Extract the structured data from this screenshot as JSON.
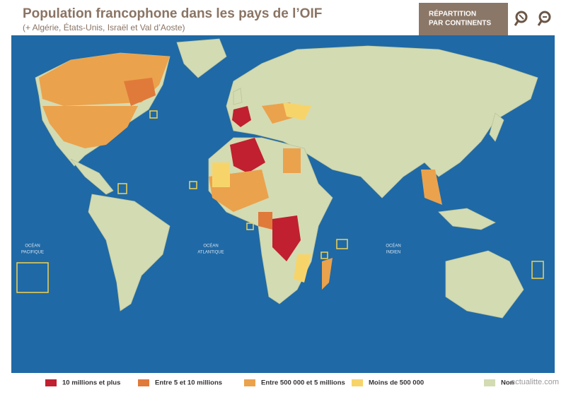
{
  "header": {
    "title": "Population francophone dans les pays de l’OIF",
    "subtitle": "(+ Algérie, États-Unis, Israël et Val d’Aoste)",
    "button": [
      "RÉPARTITION",
      "PAR CONTINENTS"
    ]
  },
  "map": {
    "oceans": [
      {
        "lines": [
          "OCÉAN",
          "PACIFIQUE"
        ]
      },
      {
        "lines": [
          "OCÉAN",
          "ATLANTIQUE"
        ]
      },
      {
        "lines": [
          "OCÉAN",
          "INDIEN"
        ]
      }
    ]
  },
  "legend": [
    {
      "label": "10 millions et plus",
      "color": "#c0202f"
    },
    {
      "label": "Entre 5 et 10 millions",
      "color": "#e07a3a"
    },
    {
      "label": "Entre 500 000 et 5 millions",
      "color": "#eba24c"
    },
    {
      "label": "Moins de  500 000",
      "color": "#f7d46a"
    },
    {
      "label": "Non",
      "color": "#d3dbb3"
    }
  ],
  "watermark": "actualitte.com"
}
